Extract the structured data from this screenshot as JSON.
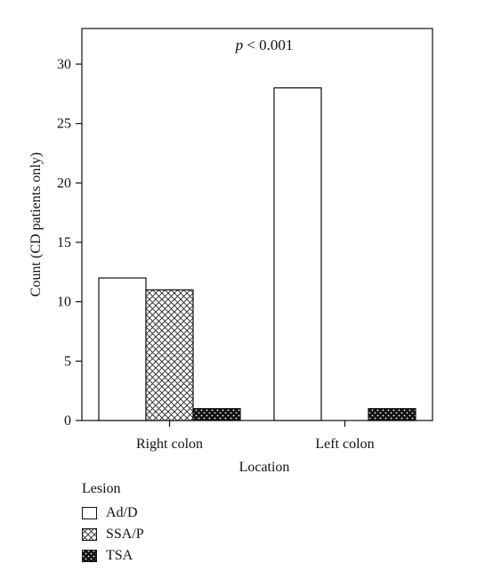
{
  "chart_data": {
    "type": "bar",
    "annotation": {
      "prefix": "p",
      "text": " < 0.001"
    },
    "xlabel": "Location",
    "ylabel": "Count (CD patients only)",
    "ylim": [
      0,
      33
    ],
    "yticks": [
      0,
      5,
      10,
      15,
      20,
      25,
      30
    ],
    "categories": [
      "Right colon",
      "Left colon"
    ],
    "series": [
      {
        "name": "Ad/D",
        "values": [
          12,
          28
        ],
        "pattern": "none"
      },
      {
        "name": "SSA/P",
        "values": [
          11,
          0
        ],
        "pattern": "crosshatch"
      },
      {
        "name": "TSA",
        "values": [
          1,
          1
        ],
        "pattern": "dots"
      }
    ],
    "legend": {
      "title": "Lesion",
      "placement": "bottom-left"
    },
    "grid": false
  }
}
